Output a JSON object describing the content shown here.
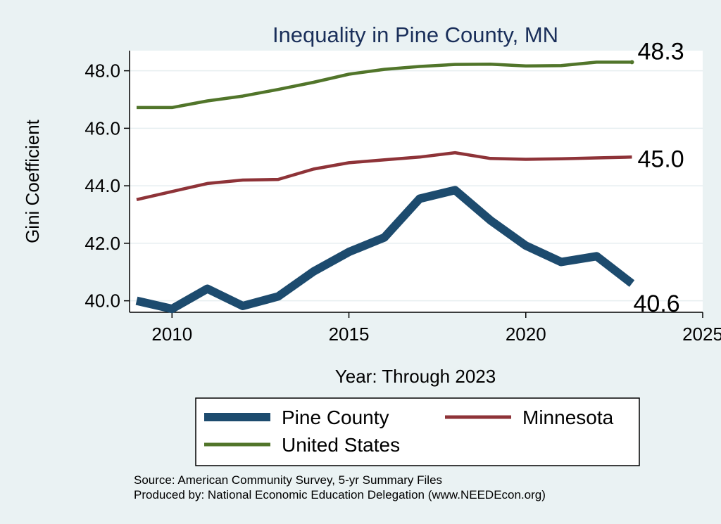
{
  "chart_data": {
    "type": "line",
    "title": "Inequality in Pine County, MN",
    "xlabel": "Year: Through 2023",
    "ylabel": "Gini Coefficient",
    "xlim": [
      2008.8,
      2025
    ],
    "ylim": [
      39.6,
      48.7
    ],
    "xticks": [
      2010,
      2015,
      2020,
      2025
    ],
    "yticks": [
      40.0,
      42.0,
      44.0,
      46.0,
      48.0
    ],
    "ytick_labels": [
      "40.0",
      "42.0",
      "44.0",
      "46.0",
      "48.0"
    ],
    "grid": "horizontal",
    "legend_placement": "bottom",
    "x": [
      2009,
      2010,
      2011,
      2012,
      2013,
      2014,
      2015,
      2016,
      2017,
      2018,
      2019,
      2020,
      2021,
      2022,
      2023
    ],
    "series": [
      {
        "name": "Pine County",
        "color": "#1d4b6e",
        "values": [
          40.0,
          39.72,
          40.42,
          39.82,
          40.15,
          41.02,
          41.7,
          42.2,
          43.55,
          43.85,
          42.8,
          41.92,
          41.35,
          41.55,
          40.6
        ],
        "end_label": "40.6"
      },
      {
        "name": "Minnesota",
        "color": "#8e3338",
        "values": [
          43.52,
          43.8,
          44.08,
          44.2,
          44.22,
          44.58,
          44.8,
          44.9,
          45.0,
          45.15,
          44.95,
          44.92,
          44.94,
          44.97,
          45.0
        ],
        "end_label": "45.0"
      },
      {
        "name": "United States",
        "color": "#51752a",
        "values": [
          46.72,
          46.72,
          46.95,
          47.12,
          47.35,
          47.6,
          47.88,
          48.05,
          48.15,
          48.22,
          48.23,
          48.17,
          48.18,
          48.3,
          48.3
        ],
        "end_label": "48.3"
      }
    ]
  },
  "notes": {
    "source": "Source: American Community Survey, 5-yr Summary Files",
    "produced": "Produced by: National Economic Education Delegation (www.NEEDEcon.org)"
  }
}
